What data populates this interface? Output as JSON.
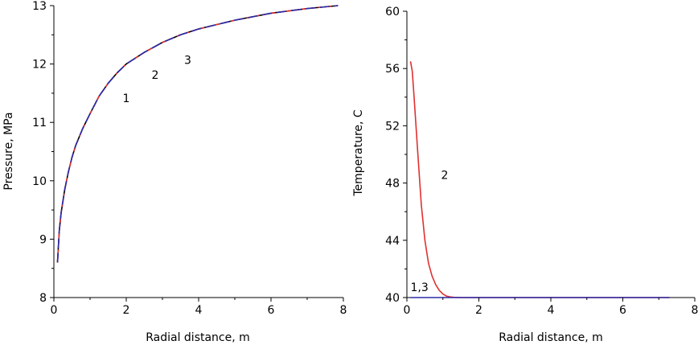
{
  "chart_data": [
    {
      "type": "line",
      "xlabel": "Radial distance, m",
      "ylabel": "Pressure, MPa",
      "xlim": [
        0,
        8
      ],
      "ylim": [
        8,
        13
      ],
      "xticks": [
        0,
        2,
        4,
        6,
        8
      ],
      "yticks": [
        8,
        9,
        10,
        11,
        12,
        13
      ],
      "x_tick_labels": [
        "0",
        "2",
        "4",
        "6",
        "8"
      ],
      "y_tick_labels": [
        "8",
        "9",
        "10",
        "11",
        "12",
        "13"
      ],
      "series": [
        {
          "name": "1",
          "color": "#000000",
          "dash": "",
          "x": [
            0.1,
            0.15,
            0.2,
            0.3,
            0.4,
            0.5,
            0.6,
            0.8,
            1.0,
            1.25,
            1.5,
            1.75,
            2.0,
            2.5,
            3.0,
            3.5,
            4.0,
            5.0,
            6.0,
            7.0,
            7.85
          ],
          "y": [
            8.6,
            9.15,
            9.45,
            9.85,
            10.15,
            10.4,
            10.6,
            10.9,
            11.15,
            11.45,
            11.67,
            11.85,
            12.0,
            12.2,
            12.37,
            12.5,
            12.6,
            12.75,
            12.87,
            12.95,
            13.0
          ]
        },
        {
          "name": "2",
          "color": "#e03030",
          "dash": "6,4",
          "x": [
            0.1,
            0.15,
            0.2,
            0.3,
            0.4,
            0.5,
            0.6,
            0.8,
            1.0,
            1.25,
            1.5,
            1.75,
            2.0,
            2.5,
            3.0,
            3.5,
            4.0,
            5.0,
            6.0,
            7.0,
            7.85
          ],
          "y": [
            8.6,
            9.15,
            9.45,
            9.85,
            10.15,
            10.4,
            10.6,
            10.9,
            11.15,
            11.45,
            11.67,
            11.85,
            12.0,
            12.2,
            12.37,
            12.5,
            12.6,
            12.75,
            12.87,
            12.95,
            13.0
          ]
        },
        {
          "name": "3",
          "color": "#2a2aa8",
          "dash": "12,6",
          "x": [
            0.1,
            0.15,
            0.2,
            0.3,
            0.4,
            0.5,
            0.6,
            0.8,
            1.0,
            1.25,
            1.5,
            1.75,
            2.0,
            2.5,
            3.0,
            3.5,
            4.0,
            5.0,
            6.0,
            7.0,
            7.85
          ],
          "y": [
            8.6,
            9.15,
            9.45,
            9.85,
            10.15,
            10.4,
            10.6,
            10.9,
            11.15,
            11.45,
            11.67,
            11.85,
            12.0,
            12.2,
            12.37,
            12.5,
            12.6,
            12.75,
            12.87,
            12.95,
            13.0
          ]
        }
      ],
      "annotations": [
        {
          "text": "1",
          "x": 2.0,
          "y": 11.35
        },
        {
          "text": "2",
          "x": 2.8,
          "y": 11.75
        },
        {
          "text": "3",
          "x": 3.7,
          "y": 12.0
        }
      ]
    },
    {
      "type": "line",
      "xlabel": "Radial distance, m",
      "ylabel": "Temperature, C",
      "xlim": [
        0,
        8
      ],
      "ylim": [
        40,
        60
      ],
      "xticks": [
        0,
        2,
        4,
        6,
        8
      ],
      "yticks": [
        40,
        44,
        48,
        52,
        56,
        60
      ],
      "x_tick_labels": [
        "0",
        "2",
        "4",
        "6",
        "8"
      ],
      "y_tick_labels": [
        "40",
        "44",
        "48",
        "52",
        "56",
        "60"
      ],
      "series": [
        {
          "name": "2",
          "color": "#e03030",
          "dash": "",
          "x": [
            0.1,
            0.15,
            0.2,
            0.3,
            0.4,
            0.5,
            0.6,
            0.7,
            0.8,
            0.9,
            1.0,
            1.1,
            1.2,
            1.3,
            1.5,
            2.0,
            7.3
          ],
          "y": [
            56.5,
            55.8,
            54.0,
            50.2,
            46.5,
            44.0,
            42.4,
            41.5,
            40.9,
            40.5,
            40.25,
            40.1,
            40.05,
            40.02,
            40.0,
            40.0,
            40.0
          ]
        },
        {
          "name": "1,3",
          "color": "#2a2aa8",
          "dash": "",
          "x": [
            0.1,
            7.3
          ],
          "y": [
            40.0,
            40.0
          ]
        }
      ],
      "annotations": [
        {
          "text": "2",
          "x": 1.05,
          "y": 48.3
        },
        {
          "text": "1,3",
          "x": 0.35,
          "y": 40.45
        }
      ]
    }
  ]
}
